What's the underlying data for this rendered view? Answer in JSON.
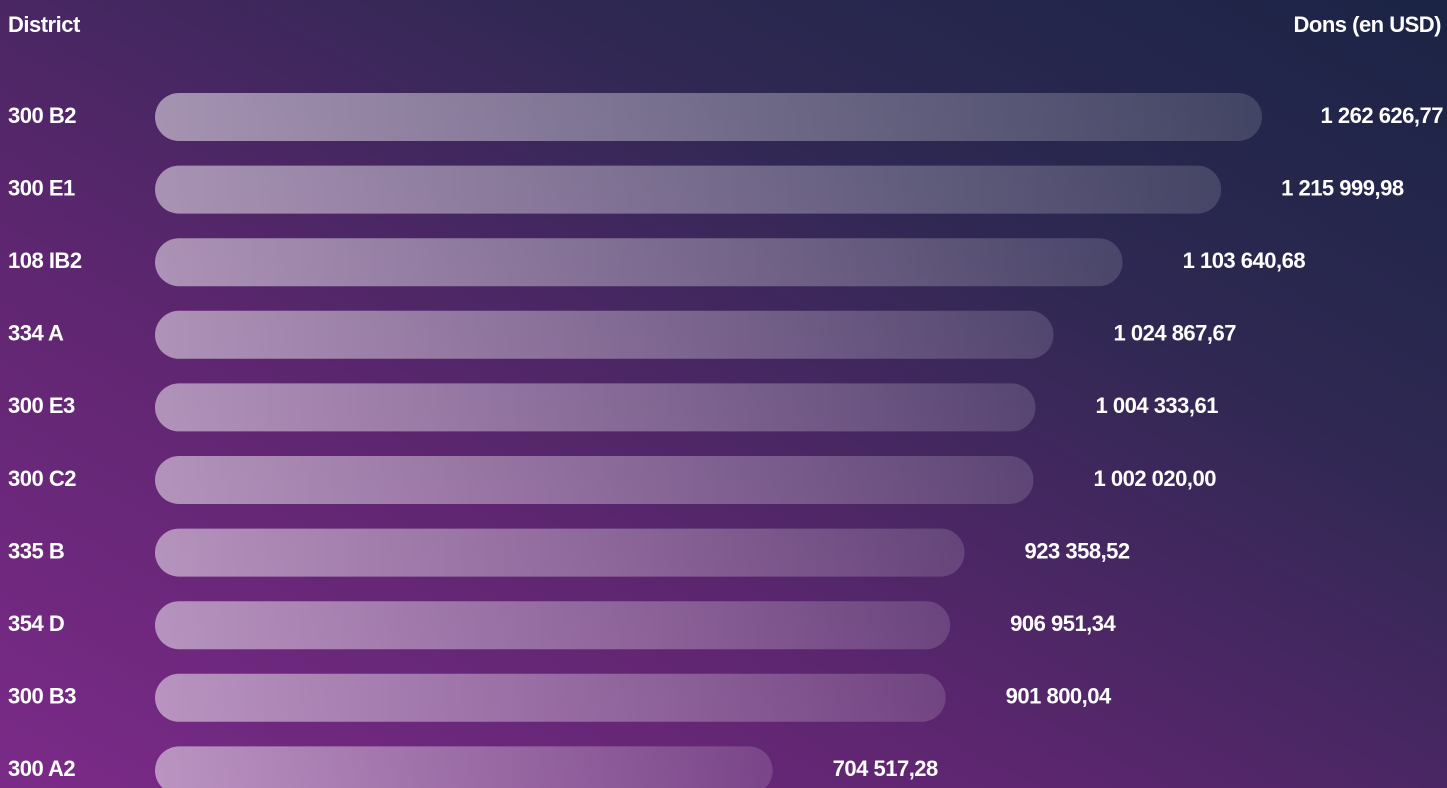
{
  "chart_data": {
    "type": "bar",
    "orientation": "horizontal",
    "category_header": "District",
    "value_header": "Dons (en USD)",
    "categories": [
      "300 B2",
      "300 E1",
      "108 IB2",
      "334 A",
      "300 E3",
      "300 C2",
      "335 B",
      "354 D",
      "300 B3",
      "300 A2"
    ],
    "values": [
      1262626.77,
      1215999.98,
      1103640.68,
      1024867.67,
      1004333.61,
      1002020.0,
      923358.52,
      906951.34,
      901800.04,
      704517.28
    ],
    "value_labels": [
      "1 262 626,77",
      "1 215 999,98",
      "1 103 640,68",
      "1 024 867,67",
      "1 004 333,61",
      "1 002 020,00",
      "923 358,52",
      "906 951,34",
      "901 800,04",
      "704 517,28"
    ],
    "color": "#ffffff",
    "header_color": "#f5c400"
  }
}
